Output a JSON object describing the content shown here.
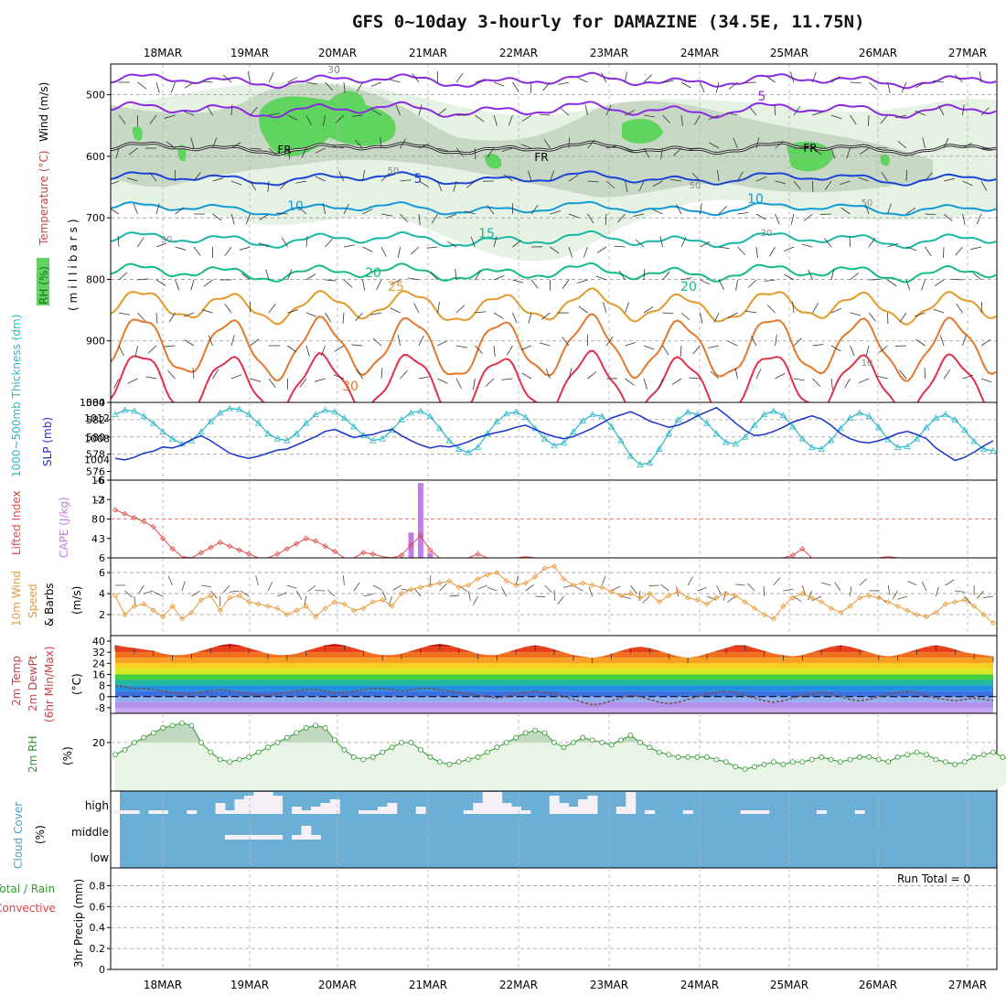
{
  "title": "GFS 0~10day 3-hourly for DAMAZINE (34.5E, 11.75N)",
  "dates": [
    "18MAR",
    "19MAR",
    "20MAR",
    "21MAR",
    "22MAR",
    "23MAR",
    "24MAR",
    "25MAR",
    "26MAR",
    "27MAR"
  ],
  "colors": {
    "purple": "#8a2be2",
    "blue": "#1a44d6",
    "lightblue": "#159ad8",
    "teal": "#16b8a4",
    "green": "#13bb88",
    "orange": "#e39a2a",
    "darkorange": "#e4772a",
    "red": "#e0304a",
    "thickness": "#2ab8c8",
    "slp": "#1a34c8",
    "lifted": "#e04a4a",
    "cape": "#c27be8",
    "wind10": "#e89a3a",
    "rh2m": "#2e9a2e",
    "cloud": "#6baed6"
  },
  "panels": {
    "upper": {
      "label_wind": "Wind (m/s)",
      "label_temp": "Temperature (°C)",
      "label_rh": "RH (%)",
      "label_mb": "(millibars)",
      "yticks": [
        "500",
        "600",
        "700",
        "800",
        "900",
        "1000"
      ]
    },
    "thickness": {
      "label_thick": "1000~500mb Thickness (dm)",
      "label_slp": "SLP (mb)",
      "yticks_left": [
        "584",
        "582",
        "580",
        "578",
        "576"
      ],
      "yticks_right": [
        "1012",
        "1008",
        "1004"
      ]
    },
    "cape": {
      "label_li": "Lifted Index",
      "label_cape": "CAPE (J/kg)",
      "yticks_left": [
        "-6",
        "-3",
        "0",
        "3",
        "6"
      ],
      "yticks_right": [
        "16",
        "12",
        "8",
        "4"
      ]
    },
    "wind10": {
      "label_a": "10m Wind",
      "label_b": "Speed",
      "label_c": "& Barbs",
      "label_unit": "(m/s)",
      "yticks": [
        "6",
        "4",
        "2"
      ]
    },
    "temp2m": {
      "label_a": "2m Temp",
      "label_b": "2m DewPt",
      "label_c": "(6hr Min/Max)",
      "label_unit": "(°C)",
      "yticks": [
        "40",
        "32",
        "24",
        "16",
        "8",
        "0",
        "-8"
      ]
    },
    "rh2m": {
      "label_a": "2m RH",
      "label_unit": "(%)",
      "yticks": [
        "20"
      ]
    },
    "cloud": {
      "label_a": "Cloud Cover",
      "label_unit": "(%)",
      "levels": [
        "high",
        "middle",
        "low"
      ]
    },
    "precip": {
      "label_a": "Total / Rain",
      "label_b": "Convective",
      "label_c": "3hr Precip (mm)",
      "run_total": "Run Total = 0",
      "yticks": [
        "0.8",
        "0.6",
        "0.4",
        "0.2",
        "0"
      ]
    }
  },
  "contour_labels": [
    "30",
    "5",
    "FR",
    "FR",
    "FR",
    "5",
    "50",
    "10",
    "30",
    "15",
    "50",
    "10",
    "50",
    "30",
    "20",
    "25",
    "20",
    "10",
    "30"
  ],
  "chart_data": [
    {
      "type": "line",
      "name_hint": "thickness_slp",
      "series": [
        {
          "name": "1000~500mb Thickness (dm)",
          "values": [
            582.6,
            583.1,
            583.0,
            582.4,
            581.6,
            580.6,
            579.8,
            579.2,
            579.6,
            580.6,
            581.8,
            582.8,
            583.3,
            583.2,
            582.6,
            581.6,
            580.4,
            579.8,
            579.6,
            580.4,
            581.6,
            582.6,
            583.1,
            582.9,
            582.2,
            581.2,
            580.2,
            579.6,
            579.8,
            580.8,
            582.0,
            582.8,
            583.0,
            582.4,
            581.0,
            579.6,
            578.6,
            578.2,
            578.8,
            580.4,
            581.8,
            582.7,
            582.9,
            582.3,
            581.0,
            579.8,
            579.0,
            579.3,
            580.6,
            581.9,
            582.6,
            582.4,
            581.2,
            579.6,
            577.8,
            576.8,
            577.0,
            578.6,
            580.4,
            582.0,
            582.9,
            582.6,
            581.6,
            580.4,
            579.4,
            579.2,
            580.0,
            581.4,
            582.6,
            583.0,
            582.5,
            581.2,
            579.8,
            578.8,
            578.6,
            579.6,
            581.0,
            582.2,
            582.8,
            582.4,
            581.1,
            579.7,
            578.8,
            578.9,
            579.8,
            581.1,
            582.2,
            582.6,
            582.0,
            580.8,
            579.5,
            578.6,
            578.4
          ]
        },
        {
          "name": "SLP (mb)",
          "values": [
            1004.2,
            1003.9,
            1004.4,
            1005.2,
            1005.6,
            1006.4,
            1006.2,
            1006.8,
            1007.8,
            1008.6,
            1007.6,
            1006.4,
            1005.2,
            1004.6,
            1004.2,
            1004.6,
            1005.2,
            1005.8,
            1006.0,
            1006.8,
            1007.6,
            1008.4,
            1009.4,
            1009.8,
            1009.0,
            1008.2,
            1008.6,
            1008.8,
            1009.4,
            1009.8,
            1008.6,
            1007.6,
            1006.8,
            1006.2,
            1006.6,
            1006.4,
            1006.8,
            1007.4,
            1008.2,
            1008.8,
            1009.2,
            1009.6,
            1010.2,
            1010.6,
            1009.8,
            1009.0,
            1008.4,
            1008.0,
            1008.4,
            1009.2,
            1010.0,
            1011.0,
            1012.0,
            1012.6,
            1013.2,
            1012.4,
            1011.4,
            1010.8,
            1010.2,
            1010.6,
            1011.4,
            1012.4,
            1013.2,
            1014.0,
            1012.6,
            1011.0,
            1009.6,
            1008.6,
            1008.8,
            1009.4,
            1010.2,
            1011.2,
            1011.8,
            1012.4,
            1011.8,
            1010.6,
            1009.0,
            1008.0,
            1007.4,
            1007.2,
            1007.6,
            1008.2,
            1009.0,
            1009.4,
            1008.8,
            1008.0,
            1006.2,
            1005.0,
            1003.8,
            1004.4,
            1005.4,
            1006.6,
            1007.6
          ]
        }
      ]
    },
    {
      "type": "bar",
      "name_hint": "cape_li",
      "series": [
        {
          "name": "CAPE (J/kg)",
          "x_index": [
            31,
            32,
            33,
            34
          ],
          "values": [
            5.2,
            15.4,
            1.0,
            0.0
          ]
        },
        {
          "name": "Lifted Index",
          "values": [
            -1.4,
            -0.8,
            -0.2,
            0.4,
            1.2,
            3.0,
            4.6,
            5.8,
            6.0,
            5.2,
            4.4,
            3.6,
            4.2,
            4.8,
            5.4,
            6.2,
            6.0,
            5.4,
            4.6,
            3.8,
            3.0,
            3.4,
            4.2,
            5.0,
            6.2,
            6.0,
            5.2,
            5.4,
            5.8,
            6.0,
            5.6,
            4.0,
            2.6,
            4.8,
            6.0,
            6.4,
            6.6,
            6.2,
            5.4,
            6.0,
            6.4,
            6.5,
            6.2,
            5.8,
            6.0,
            6.2,
            6.4,
            6.6,
            6.4,
            6.2,
            6.0,
            6.4,
            6.2,
            6.0,
            6.6,
            6.4,
            6.2,
            6.0,
            6.4,
            6.2,
            6.0,
            6.3,
            6.5,
            6.4,
            6.2,
            6.0,
            6.4,
            6.3,
            6.1,
            6.5,
            6.4,
            5.6,
            4.6,
            6.0,
            6.4,
            6.2,
            6.0,
            6.4,
            6.5,
            6.3,
            6.1,
            5.8,
            6.2,
            6.4,
            6.5,
            6.3,
            6.1,
            6.4,
            6.2,
            6.5,
            6.3,
            6.4,
            6.2
          ]
        }
      ]
    },
    {
      "type": "line",
      "name_hint": "wind10",
      "series": [
        {
          "name": "10m Wind Speed (m/s)",
          "values": [
            3.8,
            2.0,
            2.8,
            3.0,
            2.4,
            1.8,
            2.8,
            1.6,
            2.2,
            3.4,
            3.8,
            2.4,
            3.6,
            3.8,
            3.2,
            3.0,
            2.8,
            2.6,
            2.0,
            2.4,
            2.8,
            1.8,
            2.6,
            3.2,
            3.0,
            2.4,
            2.6,
            3.2,
            3.4,
            2.8,
            4.0,
            4.4,
            4.6,
            4.8,
            5.0,
            5.2,
            4.6,
            4.8,
            5.4,
            5.8,
            6.0,
            5.2,
            4.8,
            5.0,
            5.6,
            6.4,
            6.6,
            5.4,
            4.8,
            5.0,
            4.8,
            4.6,
            4.2,
            3.8,
            4.0,
            3.6,
            4.0,
            3.2,
            3.8,
            4.2,
            3.6,
            3.4,
            3.0,
            3.6,
            4.0,
            3.8,
            3.2,
            2.6,
            2.0,
            1.6,
            2.8,
            3.6,
            4.0,
            3.6,
            3.2,
            2.6,
            2.2,
            2.8,
            3.6,
            3.8,
            3.6,
            3.2,
            2.8,
            2.4,
            2.0,
            1.8,
            2.2,
            3.0,
            3.2,
            3.4,
            2.8,
            2.0,
            1.2
          ]
        }
      ]
    },
    {
      "type": "area",
      "name_hint": "temp2m",
      "series": [
        {
          "name": "2m Temp (°C)",
          "values": [
            37,
            36,
            35,
            34,
            33,
            31,
            30,
            30,
            31,
            33,
            35,
            37,
            38,
            37,
            35,
            33,
            31,
            30,
            30,
            31,
            33,
            35,
            37,
            38,
            37,
            35,
            33,
            31,
            30,
            30,
            31,
            33,
            35,
            37,
            38,
            37,
            35,
            33,
            31,
            30,
            30,
            32,
            34,
            36,
            37,
            36,
            34,
            32,
            30,
            29,
            28,
            29,
            31,
            33,
            35,
            36,
            35,
            33,
            31,
            29,
            28,
            29,
            31,
            33,
            35,
            37,
            37,
            35,
            33,
            31,
            30,
            29,
            30,
            32,
            34,
            36,
            37,
            36,
            34,
            32,
            30,
            29,
            30,
            32,
            34,
            36,
            37,
            36,
            34,
            32,
            31,
            30,
            29
          ]
        },
        {
          "name": "2m DewPt (°C)",
          "values": [
            8,
            7,
            6,
            6,
            5,
            4,
            3,
            2,
            2,
            3,
            4,
            5,
            4,
            3,
            2,
            1,
            1,
            2,
            3,
            4,
            5,
            5,
            4,
            3,
            3,
            4,
            5,
            6,
            6,
            5,
            4,
            5,
            6,
            6,
            5,
            4,
            3,
            2,
            1,
            0,
            -1,
            0,
            2,
            3,
            4,
            3,
            2,
            0,
            -2,
            -4,
            -6,
            -5,
            -3,
            -1,
            1,
            0,
            -2,
            -4,
            -5,
            -4,
            -2,
            0,
            2,
            3,
            4,
            3,
            1,
            -1,
            -3,
            -4,
            -3,
            -1,
            1,
            2,
            3,
            2,
            0,
            -2,
            -3,
            -2,
            0,
            2,
            3,
            4,
            3,
            1,
            -1,
            -2,
            -3,
            -2,
            -1,
            -2,
            -3
          ]
        }
      ]
    },
    {
      "type": "area",
      "name_hint": "rh2m",
      "series": [
        {
          "name": "2m RH (%)",
          "values": [
            15,
            17,
            20,
            22,
            24,
            26,
            27,
            28,
            27,
            20,
            16,
            13,
            12,
            13,
            14,
            16,
            18,
            20,
            22,
            24,
            26,
            27,
            26,
            21,
            17,
            14,
            13,
            14,
            16,
            18,
            20,
            20,
            17,
            14,
            12,
            11,
            12,
            13,
            14,
            16,
            18,
            20,
            22,
            24,
            25,
            24,
            20,
            18,
            20,
            22,
            21,
            20,
            19,
            21,
            23,
            20,
            18,
            16,
            15,
            14,
            14,
            14,
            14,
            13,
            12,
            10,
            9,
            10,
            11,
            12,
            11,
            12,
            12,
            13,
            14,
            13,
            12,
            13,
            14,
            14,
            13,
            12,
            14,
            15,
            16,
            15,
            13,
            12,
            11,
            12,
            14,
            15,
            16,
            14,
            13,
            11,
            9
          ]
        }
      ]
    },
    {
      "type": "bar",
      "name_hint": "cloud",
      "series": [
        {
          "name": "high",
          "values": [
            1,
            1,
            1,
            0,
            1,
            1,
            0,
            0,
            1,
            0,
            0,
            3,
            1,
            4,
            5,
            6,
            6,
            5,
            0,
            2,
            1,
            2,
            3,
            4,
            0,
            0,
            1,
            1,
            2,
            3,
            0,
            0,
            2,
            0,
            0,
            0,
            0,
            1,
            3,
            6,
            6,
            3,
            2,
            1,
            0,
            0,
            5,
            3,
            2,
            4,
            5,
            0,
            0,
            2,
            6,
            0,
            1,
            0,
            0,
            0,
            1,
            0,
            0,
            0,
            0,
            0,
            1,
            1,
            1,
            0,
            0,
            0,
            0,
            0,
            1,
            0,
            0,
            0,
            1,
            0,
            0,
            0,
            0,
            0,
            0,
            0,
            0,
            0,
            0,
            0,
            0,
            0,
            0
          ]
        },
        {
          "name": "middle",
          "values": [
            0,
            0,
            0,
            0,
            0,
            0,
            0,
            0,
            0,
            0,
            0,
            0,
            1,
            1,
            1,
            1,
            1,
            1,
            0,
            1,
            3,
            1,
            0,
            0,
            0,
            0,
            0,
            0,
            0,
            0,
            0,
            0,
            0,
            0,
            0,
            0,
            0,
            0,
            0,
            0,
            0,
            0,
            0,
            0,
            0,
            0,
            0,
            0,
            0,
            0,
            0,
            0,
            0,
            0,
            0,
            0,
            0,
            0,
            0,
            0,
            0,
            0,
            0,
            0,
            0,
            0,
            0,
            0,
            0,
            0,
            0,
            0,
            0,
            0,
            0,
            0,
            0,
            0,
            0,
            0,
            0,
            0,
            0,
            0,
            0,
            0,
            0,
            0,
            0,
            0,
            0,
            0,
            0
          ]
        }
      ]
    },
    {
      "type": "bar",
      "name_hint": "precip",
      "series": [
        {
          "name": "3hr Precip (mm)",
          "values": []
        }
      ],
      "ylim": [
        0,
        0.9
      ]
    }
  ]
}
